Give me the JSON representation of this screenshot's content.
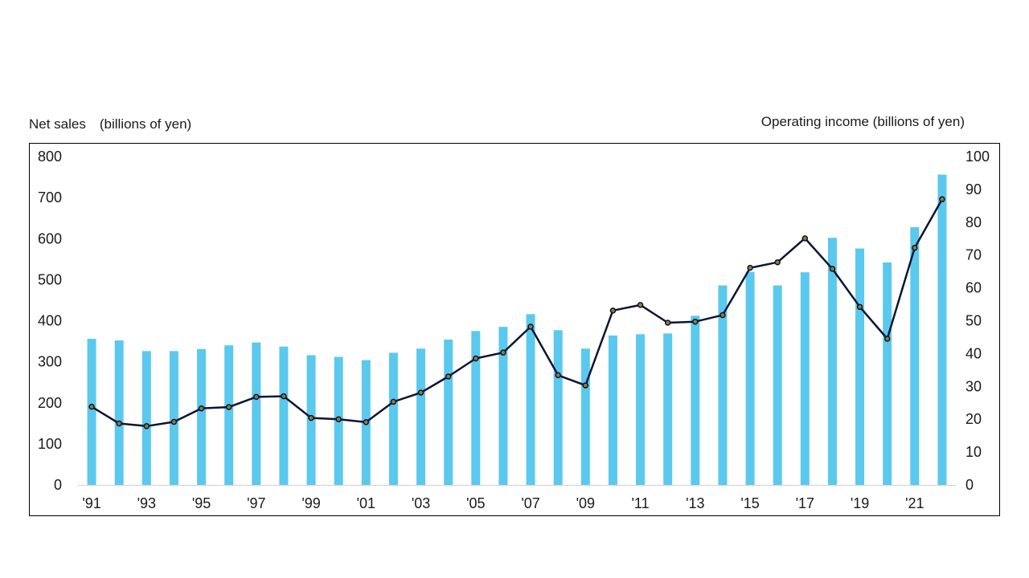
{
  "left_axis_title": "Net sales　(billions of yen)",
  "right_axis_title": "Operating income (billions of yen)",
  "colors": {
    "bars": "#5BC9EE",
    "line": "#0A1535",
    "marker_fill": "#A07A2A"
  },
  "chart_data": {
    "type": "bar",
    "x": [
      "'91",
      "'92",
      "'93",
      "'94",
      "'95",
      "'96",
      "'97",
      "'98",
      "'99",
      "'00",
      "'01",
      "'02",
      "'03",
      "'04",
      "'05",
      "'06",
      "'07",
      "'08",
      "'09",
      "'10",
      "'11",
      "'12",
      "'13",
      "'14",
      "'15",
      "'16",
      "'17",
      "'18",
      "'19",
      "'20",
      "'21",
      "'22"
    ],
    "x_tick_labels": [
      "'91",
      "'93",
      "'95",
      "'97",
      "'99",
      "'01",
      "'03",
      "'05",
      "'07",
      "'09",
      "'11",
      "'13",
      "'15",
      "'17",
      "'19",
      "'21"
    ],
    "series": [
      {
        "type": "bar",
        "axis": "left",
        "values": [
          356,
          352,
          326,
          326,
          331,
          340,
          347,
          337,
          316,
          312,
          304,
          322,
          332,
          354,
          375,
          385,
          416,
          377,
          332,
          364,
          367,
          369,
          412,
          486,
          519,
          486,
          518,
          602,
          576,
          542,
          628,
          756
        ]
      },
      {
        "type": "line",
        "axis": "right",
        "values": [
          23.8,
          18.7,
          17.9,
          19.2,
          23.3,
          23.7,
          26.8,
          27.0,
          20.4,
          20.0,
          19.1,
          25.3,
          28.1,
          33.0,
          38.5,
          40.3,
          48.2,
          33.4,
          30.3,
          53.1,
          54.8,
          49.4,
          49.7,
          51.7,
          66.1,
          67.8,
          75.1,
          65.8,
          54.2,
          44.5,
          72.2,
          87.0
        ]
      }
    ],
    "y_left": {
      "lim": [
        0,
        800
      ],
      "ticks": [
        0,
        100,
        200,
        300,
        400,
        500,
        600,
        700,
        800
      ]
    },
    "y_right": {
      "lim": [
        0,
        100
      ],
      "ticks": [
        0,
        10,
        20,
        30,
        40,
        50,
        60,
        70,
        80,
        90,
        100
      ]
    },
    "grid": false,
    "legend": "none"
  }
}
